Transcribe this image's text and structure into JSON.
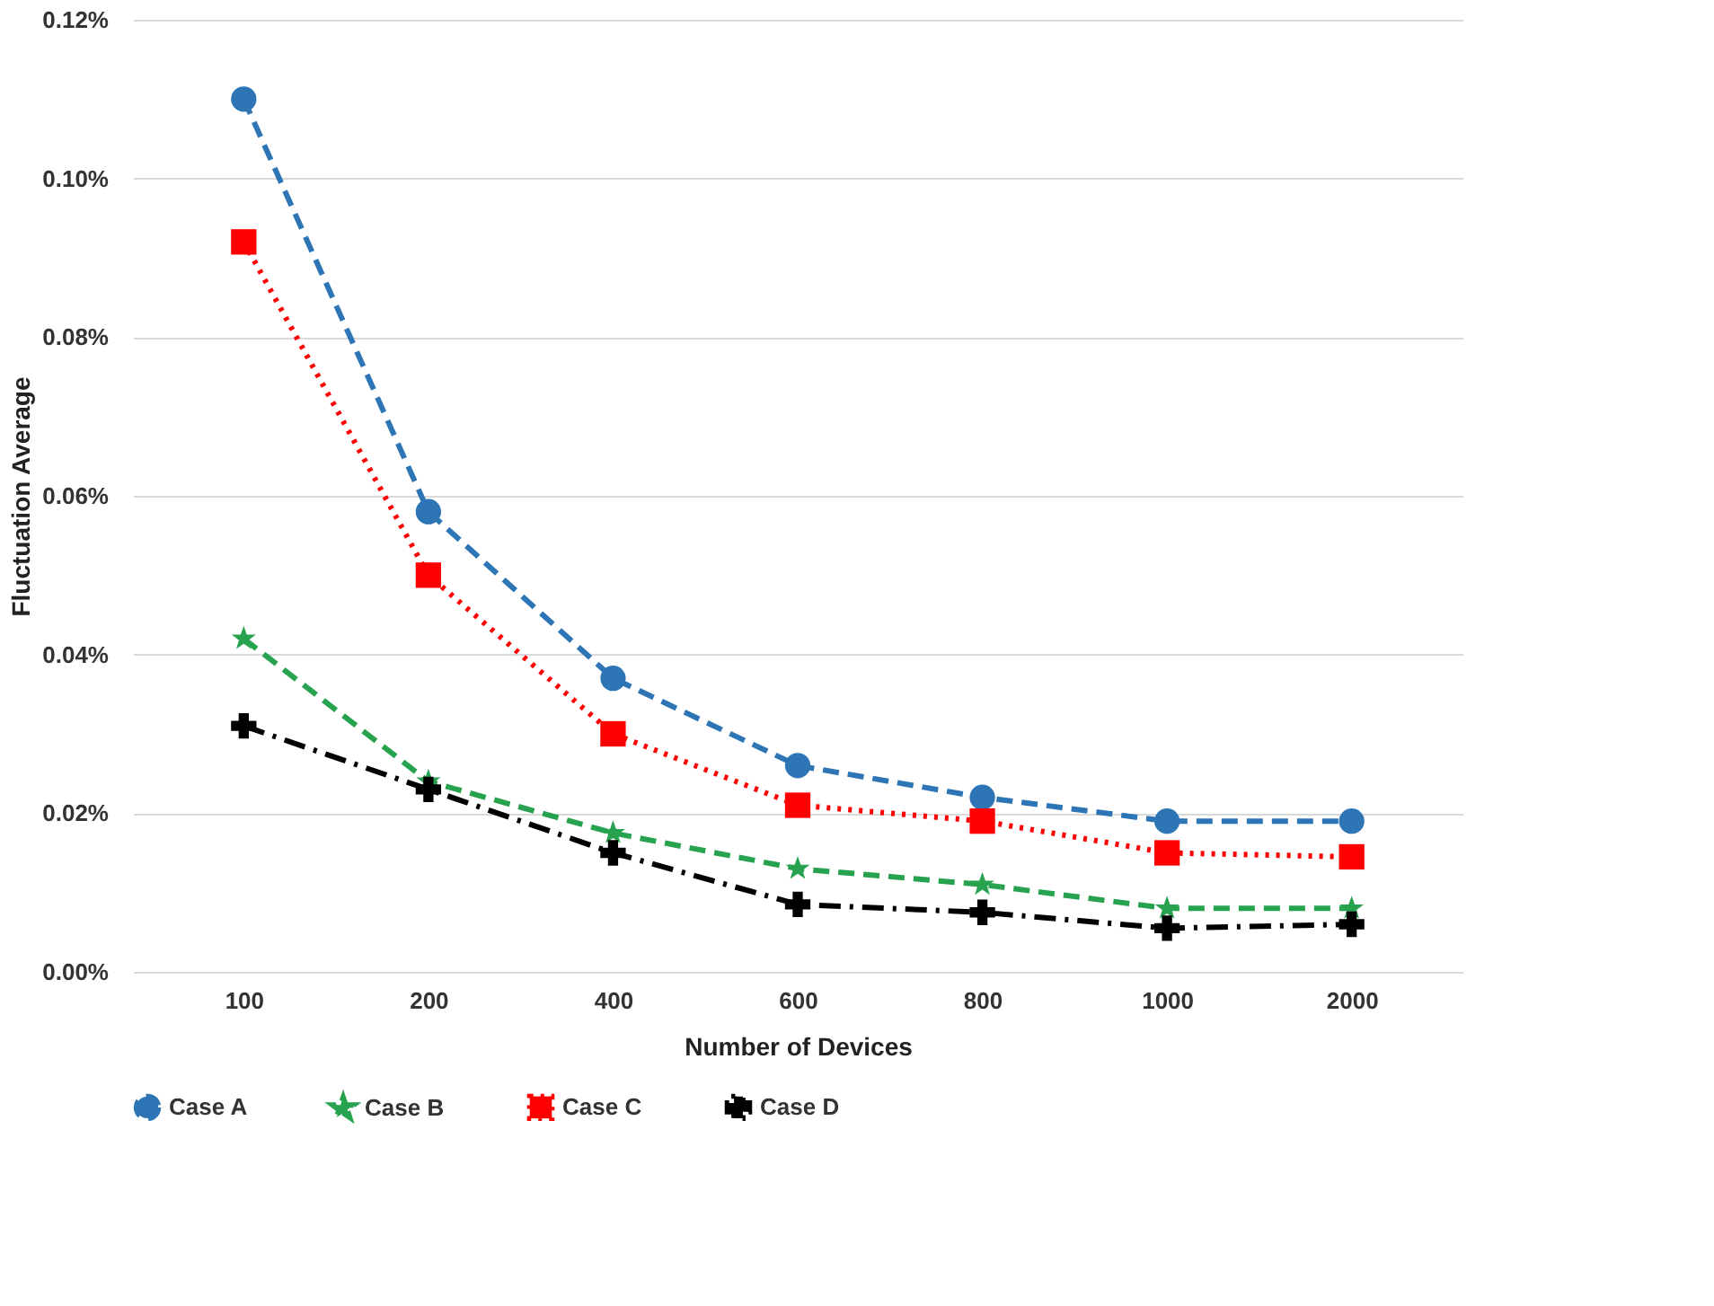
{
  "chart_data": {
    "type": "line",
    "xlabel": "Number of Devices",
    "ylabel": "Fluctuation Average",
    "categories": [
      "100",
      "200",
      "400",
      "600",
      "800",
      "1000",
      "2000"
    ],
    "series": [
      {
        "name": "Case A",
        "color": "#2e75b6",
        "marker": "circle",
        "line_style": "dashed",
        "values": [
          0.11,
          0.058,
          0.037,
          0.026,
          0.022,
          0.019,
          0.019
        ]
      },
      {
        "name": "Case B",
        "color": "#27a34f",
        "marker": "star",
        "line_style": "dashed",
        "values": [
          0.042,
          0.024,
          0.0175,
          0.013,
          0.011,
          0.008,
          0.008
        ]
      },
      {
        "name": "Case C",
        "color": "#ff0000",
        "marker": "square",
        "line_style": "dotted",
        "values": [
          0.092,
          0.05,
          0.03,
          0.021,
          0.019,
          0.015,
          0.0145
        ]
      },
      {
        "name": "Case D",
        "color": "#000000",
        "marker": "cross",
        "line_style": "dashdot",
        "values": [
          0.031,
          0.023,
          0.015,
          0.0085,
          0.0075,
          0.0055,
          0.006
        ]
      }
    ],
    "ylim": [
      0,
      0.12
    ],
    "yticks": [
      {
        "value": 0,
        "label": "0.00%"
      },
      {
        "value": 0.02,
        "label": "0.02%"
      },
      {
        "value": 0.04,
        "label": "0.04%"
      },
      {
        "value": 0.06,
        "label": "0.06%"
      },
      {
        "value": 0.08,
        "label": "0.08%"
      },
      {
        "value": 0.1,
        "label": "0.10%"
      },
      {
        "value": 0.12,
        "label": "0.12%"
      }
    ],
    "grid": "y",
    "legend": "bottom"
  }
}
